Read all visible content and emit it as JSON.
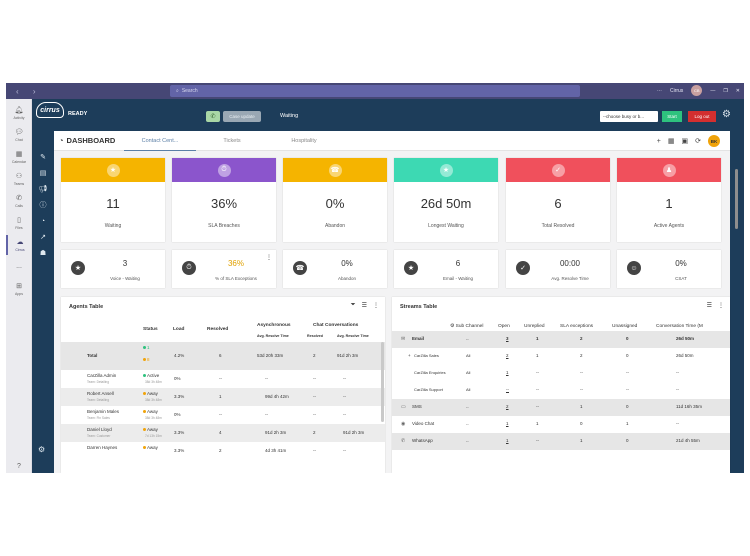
{
  "titlebar": {
    "search_placeholder": "Search",
    "user": "Cirrus",
    "user_initials": "CB"
  },
  "rail": {
    "items": [
      "Activity",
      "Chat",
      "Calendar",
      "Teams",
      "Calls",
      "Files",
      "Cirrus",
      "...",
      "Apps"
    ],
    "active": "Cirrus",
    "help": "?"
  },
  "topbar": {
    "status": "READY",
    "case_update": "Case update",
    "state": "Waiting",
    "busy_placeholder": "--choose busy or b...",
    "start": "Start",
    "logout": "Log out"
  },
  "dashboard": {
    "title": "DASHBOARD",
    "tabs": [
      "Contact Cent...",
      "Tickets",
      "Hospitality"
    ],
    "initials": "BK",
    "kpis": [
      {
        "value": "11",
        "label": "Waiting",
        "color": "#f5b400",
        "icon": "star-icon"
      },
      {
        "value": "36%",
        "label": "SLA Breaches",
        "color": "#8b55cc",
        "icon": "stopwatch-icon"
      },
      {
        "value": "0%",
        "label": "Abandon",
        "color": "#f5b400",
        "icon": "phone-down-icon"
      },
      {
        "value": "26d 50m",
        "label": "Longest Waiting",
        "color": "#3dd9b3",
        "icon": "star-icon"
      },
      {
        "value": "6",
        "label": "Total Resolved",
        "color": "#f0505c",
        "icon": "check-icon"
      },
      {
        "value": "1",
        "label": "Active Agents",
        "color": "#f0505c",
        "icon": "agent-icon"
      }
    ],
    "small_kpis": [
      {
        "value": "3",
        "label": "Voice - Waiting",
        "icon": "star-icon",
        "value_color": "#333333"
      },
      {
        "value": "36%",
        "label": "% of SLA Exceptions",
        "icon": "stopwatch-icon",
        "value_color": "#e0a100"
      },
      {
        "value": "0%",
        "label": "Abandon",
        "icon": "phone-down-icon",
        "value_color": "#333333"
      },
      {
        "value": "6",
        "label": "Email - Waiting",
        "icon": "star-icon",
        "value_color": "#333333"
      },
      {
        "value": "00:00",
        "label": "Avg. Resolve Time",
        "icon": "check-icon",
        "value_color": "#333333"
      },
      {
        "value": "0%",
        "label": "CSAT",
        "icon": "smile-icon",
        "value_color": "#333333"
      }
    ],
    "agents_table": {
      "title": "Agents Table",
      "headers": {
        "status": "Status",
        "load": "Load",
        "resolved": "Resolved",
        "async": "Asynchronous",
        "chat": "Chat Conversations",
        "avg_resolve": "Avg. Resolve Time",
        "resolved_sub": "Resolved"
      },
      "total": {
        "name": "Total",
        "s1": "1",
        "s2": "8",
        "load": "4.2%",
        "resolved": "6",
        "async_avg": "53d 20h 33m",
        "chat_resolved": "2",
        "chat_avg": "91d 2h 3m"
      },
      "rows": [
        {
          "name": "CarZilla Admin",
          "team": "Team: Detailing",
          "status": "Active",
          "since": "38d 3h 48m",
          "load": "0%",
          "resolved": "--",
          "async_avg": "--",
          "chat_resolved": "--",
          "chat_avg": "--",
          "shaded": false
        },
        {
          "name": "Robert Ansell",
          "team": "Team: Detailing",
          "status": "Away",
          "since": "38d 3h 48m",
          "load": "3.3%",
          "resolved": "1",
          "async_avg": "99d 4h 42m",
          "chat_resolved": "--",
          "chat_avg": "--",
          "shaded": true
        },
        {
          "name": "Benjamin Males",
          "team": "Team: Fin Sales",
          "status": "Away",
          "since": "38d 3h 48m",
          "load": "0%",
          "resolved": "--",
          "async_avg": "--",
          "chat_resolved": "--",
          "chat_avg": "--",
          "shaded": false
        },
        {
          "name": "Daniel Lloyd",
          "team": "Team: Customer",
          "status": "Away",
          "since": "7d 13h 15m",
          "load": "3.3%",
          "resolved": "4",
          "async_avg": "91d 2h 3m",
          "chat_resolved": "2",
          "chat_avg": "91d 2h 3m",
          "shaded": true
        },
        {
          "name": "Darren Haynes",
          "team": "",
          "status": "Away",
          "since": "",
          "load": "3.3%",
          "resolved": "2",
          "async_avg": "4d 3h 41m",
          "chat_resolved": "--",
          "chat_avg": "--",
          "shaded": false
        }
      ]
    },
    "streams_table": {
      "title": "Streams Table",
      "headers": {
        "sub_channel": "Sub Channel",
        "open": "Open",
        "unreplied": "Unreplied",
        "sla": "SLA exceptions",
        "unassigned": "Unassigned",
        "conv_time": "Conversation Time (M"
      },
      "rows": [
        {
          "name": "Email",
          "icon": "mail-icon",
          "sub": "--",
          "open": "3",
          "unreplied": "1",
          "sla": "2",
          "unassigned": "0",
          "conv_time": "26d 50m",
          "bold": true,
          "shaded": true,
          "indent": false
        },
        {
          "name": "CarZilla Sales",
          "icon": "",
          "sub": "All",
          "open": "2",
          "unreplied": "1",
          "sla": "2",
          "unassigned": "0",
          "conv_time": "26d 50m",
          "bold": false,
          "shaded": false,
          "indent": true
        },
        {
          "name": "CarZilla Enquiries",
          "icon": "",
          "sub": "All",
          "open": "1",
          "unreplied": "--",
          "sla": "--",
          "unassigned": "--",
          "conv_time": "--",
          "bold": false,
          "shaded": false,
          "indent": true
        },
        {
          "name": "CarZilla Support",
          "icon": "",
          "sub": "All",
          "open": "--",
          "unreplied": "--",
          "sla": "--",
          "unassigned": "--",
          "conv_time": "--",
          "bold": false,
          "shaded": false,
          "indent": true
        },
        {
          "name": "SMS",
          "icon": "sms-icon",
          "sub": "--",
          "open": "2",
          "unreplied": "--",
          "sla": "1",
          "unassigned": "0",
          "conv_time": "11d 16h 35m",
          "bold": false,
          "shaded": true,
          "indent": false
        },
        {
          "name": "Video Chat",
          "icon": "video-icon",
          "sub": "--",
          "open": "1",
          "unreplied": "1",
          "sla": "0",
          "unassigned": "1",
          "conv_time": "--",
          "bold": false,
          "shaded": false,
          "indent": false
        },
        {
          "name": "WhatsApp",
          "icon": "whatsapp-icon",
          "sub": "--",
          "open": "1",
          "unreplied": "--",
          "sla": "1",
          "unassigned": "0",
          "conv_time": "21d 4h 55m",
          "bold": false,
          "shaded": true,
          "indent": false
        }
      ]
    }
  }
}
